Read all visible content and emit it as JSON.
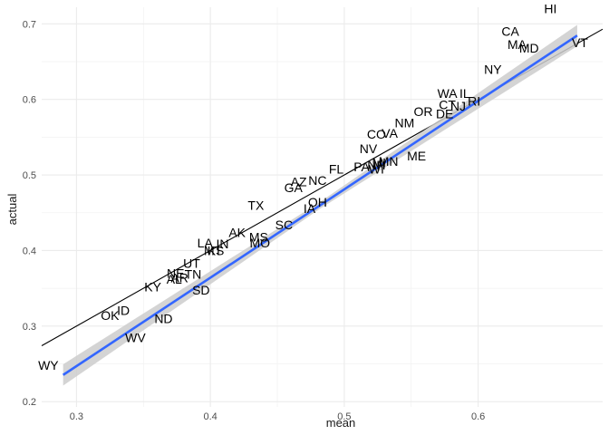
{
  "chart_data": {
    "type": "scatter",
    "xlabel": "mean",
    "ylabel": "actual",
    "xlim": [
      0.274,
      0.693
    ],
    "ylim": [
      0.193,
      0.722
    ],
    "x_ticks": [
      0.3,
      0.4,
      0.5,
      0.6
    ],
    "y_ticks": [
      0.2,
      0.3,
      0.4,
      0.5,
      0.6,
      0.7
    ],
    "x_tick_labels": [
      "0.3",
      "0.4",
      "0.5",
      "0.6"
    ],
    "y_tick_labels": [
      "0.2",
      "0.3",
      "0.4",
      "0.5",
      "0.6",
      "0.7"
    ],
    "grid": true,
    "points": [
      {
        "label": "HI",
        "x": 0.654,
        "y": 0.72
      },
      {
        "label": "CA",
        "x": 0.624,
        "y": 0.69
      },
      {
        "label": "MA",
        "x": 0.629,
        "y": 0.673
      },
      {
        "label": "MD",
        "x": 0.638,
        "y": 0.668
      },
      {
        "label": "VT",
        "x": 0.676,
        "y": 0.675
      },
      {
        "label": "NY",
        "x": 0.611,
        "y": 0.64
      },
      {
        "label": "WA",
        "x": 0.577,
        "y": 0.608
      },
      {
        "label": "IL",
        "x": 0.59,
        "y": 0.608
      },
      {
        "label": "RI",
        "x": 0.597,
        "y": 0.598
      },
      {
        "label": "CT",
        "x": 0.577,
        "y": 0.593
      },
      {
        "label": "NJ",
        "x": 0.585,
        "y": 0.591
      },
      {
        "label": "OR",
        "x": 0.559,
        "y": 0.584
      },
      {
        "label": "DE",
        "x": 0.575,
        "y": 0.581
      },
      {
        "label": "NM",
        "x": 0.545,
        "y": 0.569
      },
      {
        "label": "CO",
        "x": 0.524,
        "y": 0.554
      },
      {
        "label": "VA",
        "x": 0.534,
        "y": 0.555
      },
      {
        "label": "ME",
        "x": 0.554,
        "y": 0.525
      },
      {
        "label": "NV",
        "x": 0.518,
        "y": 0.535
      },
      {
        "label": "MN",
        "x": 0.533,
        "y": 0.518
      },
      {
        "label": "MI",
        "x": 0.526,
        "y": 0.516
      },
      {
        "label": "NH",
        "x": 0.524,
        "y": 0.513
      },
      {
        "label": "PA",
        "x": 0.513,
        "y": 0.511
      },
      {
        "label": "WI",
        "x": 0.524,
        "y": 0.508
      },
      {
        "label": "FL",
        "x": 0.494,
        "y": 0.508
      },
      {
        "label": "NC",
        "x": 0.48,
        "y": 0.493
      },
      {
        "label": "AZ",
        "x": 0.466,
        "y": 0.491
      },
      {
        "label": "GA",
        "x": 0.462,
        "y": 0.483
      },
      {
        "label": "OH",
        "x": 0.48,
        "y": 0.464
      },
      {
        "label": "IA",
        "x": 0.474,
        "y": 0.456
      },
      {
        "label": "TX",
        "x": 0.434,
        "y": 0.46
      },
      {
        "label": "SC",
        "x": 0.455,
        "y": 0.434
      },
      {
        "label": "AK",
        "x": 0.42,
        "y": 0.424
      },
      {
        "label": "MS",
        "x": 0.436,
        "y": 0.418
      },
      {
        "label": "MO",
        "x": 0.437,
        "y": 0.41
      },
      {
        "label": "LA",
        "x": 0.396,
        "y": 0.41
      },
      {
        "label": "IN",
        "x": 0.409,
        "y": 0.409
      },
      {
        "label": "KS",
        "x": 0.404,
        "y": 0.4
      },
      {
        "label": "MT",
        "x": 0.402,
        "y": 0.4
      },
      {
        "label": "UT",
        "x": 0.386,
        "y": 0.383
      },
      {
        "label": "NE",
        "x": 0.374,
        "y": 0.37
      },
      {
        "label": "TN",
        "x": 0.387,
        "y": 0.369
      },
      {
        "label": "AR",
        "x": 0.377,
        "y": 0.364
      },
      {
        "label": "AL",
        "x": 0.373,
        "y": 0.362
      },
      {
        "label": "KY",
        "x": 0.357,
        "y": 0.352
      },
      {
        "label": "SD",
        "x": 0.393,
        "y": 0.348
      },
      {
        "label": "OK",
        "x": 0.325,
        "y": 0.314
      },
      {
        "label": "ID",
        "x": 0.335,
        "y": 0.321
      },
      {
        "label": "ND",
        "x": 0.365,
        "y": 0.31
      },
      {
        "label": "WV",
        "x": 0.344,
        "y": 0.285
      },
      {
        "label": "WY",
        "x": 0.279,
        "y": 0.248
      }
    ],
    "reference_line": {
      "slope": 1,
      "intercept": 0,
      "color": "#000000"
    },
    "fit_line": {
      "slope": 1.17,
      "intercept": -0.104,
      "x_range": [
        0.29,
        0.674
      ],
      "color": "#3366ff",
      "band_color": "#cccccc"
    }
  }
}
